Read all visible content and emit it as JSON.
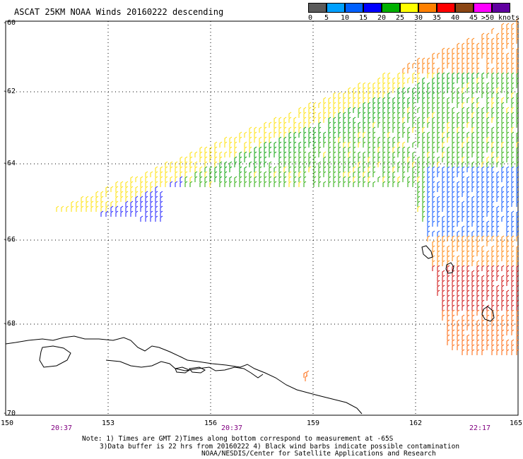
{
  "title": "ASCAT 25KM NOAA Winds 20160222 descending",
  "legend": {
    "ticks": [
      "0",
      "5",
      "10",
      "15",
      "20",
      "25",
      "30",
      "35",
      "40",
      "45",
      ">50 knots"
    ],
    "colors": [
      "#5a5a5a",
      "#00a0ff",
      "#0060ff",
      "#0000ff",
      "#00b000",
      "#ffff00",
      "#ff8000",
      "#ff0000",
      "#8b4513",
      "#ff00ff",
      "#6000a0"
    ]
  },
  "axes": {
    "lat_labels": [
      "-60",
      "-62",
      "-64",
      "-66",
      "-68",
      "-70"
    ],
    "lon_labels": [
      "150",
      "153",
      "156",
      "159",
      "162",
      "165"
    ]
  },
  "times": [
    "20:37",
    "20:37",
    "22:17"
  ],
  "notes": {
    "line1": "Note: 1) Times are GMT 2)Times along bottom correspond to measurement at -65S",
    "line2": "3)Data buffer is 22 hrs from 20160222 4) Black wind barbs indicate possible contamination",
    "line3": "NOAA/NESDIS/Center for Satellite Applications and Research"
  }
}
